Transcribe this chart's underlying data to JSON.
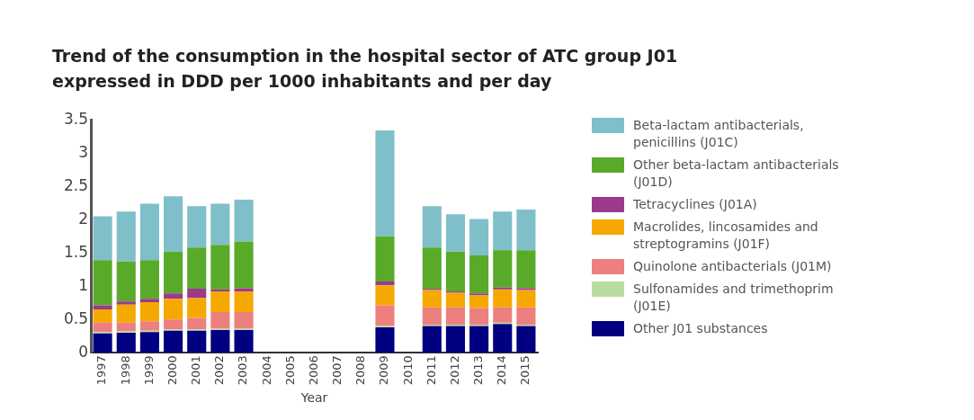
{
  "chart_data": {
    "type": "bar",
    "title": "Trend of the consumption in the hospital sector of ATC group J01 expressed in DDD per 1000 inhabitants and per day",
    "xlabel": "Year",
    "categories": [
      "1997",
      "1998",
      "1999",
      "2000",
      "2001",
      "2002",
      "2003",
      "2004",
      "2005",
      "2006",
      "2007",
      "2008",
      "2009",
      "2010",
      "2011",
      "2012",
      "2013",
      "2014",
      "2015"
    ],
    "stacked": true,
    "ylim": [
      0,
      3.5
    ],
    "yticks": [
      0,
      0.5,
      1,
      1.5,
      2,
      2.5,
      3,
      3.5
    ],
    "grid": false,
    "legend": "right",
    "series": [
      {
        "name": "Other J01 substances",
        "color": "#000080",
        "values": [
          0.29,
          0.3,
          0.31,
          0.33,
          0.33,
          0.34,
          0.34,
          null,
          null,
          null,
          null,
          null,
          0.38,
          null,
          0.4,
          0.4,
          0.4,
          0.43,
          0.4
        ]
      },
      {
        "name": "Sulfonamides and trimethoprim (J01E)",
        "color": "#b8dca0",
        "values": [
          0.02,
          0.02,
          0.02,
          0.02,
          0.02,
          0.02,
          0.02,
          null,
          null,
          null,
          null,
          null,
          0.02,
          null,
          0.02,
          0.02,
          0.02,
          0.02,
          0.02
        ]
      },
      {
        "name": "Quinolone antibacterials (J01M)",
        "color": "#ee7f7f",
        "values": [
          0.14,
          0.13,
          0.14,
          0.15,
          0.17,
          0.25,
          0.25,
          null,
          null,
          null,
          null,
          null,
          0.31,
          null,
          0.26,
          0.26,
          0.25,
          0.23,
          0.26
        ]
      },
      {
        "name": "Macrolides, lincosamides and streptogramins (J01F)",
        "color": "#f5a800",
        "values": [
          0.2,
          0.27,
          0.29,
          0.31,
          0.3,
          0.31,
          0.31,
          null,
          null,
          null,
          null,
          null,
          0.3,
          null,
          0.26,
          0.22,
          0.19,
          0.27,
          0.26
        ]
      },
      {
        "name": "Tetracyclines (J01A)",
        "color": "#9b3a8c",
        "values": [
          0.06,
          0.05,
          0.05,
          0.08,
          0.14,
          0.03,
          0.05,
          null,
          null,
          null,
          null,
          null,
          0.06,
          null,
          0.02,
          0.02,
          0.03,
          0.03,
          0.03
        ]
      },
      {
        "name": "Other beta-lactam antibacterials (J01D)",
        "color": "#5aaa2a",
        "values": [
          0.68,
          0.6,
          0.58,
          0.63,
          0.62,
          0.67,
          0.7,
          null,
          null,
          null,
          null,
          null,
          0.68,
          null,
          0.62,
          0.6,
          0.57,
          0.56,
          0.57
        ]
      },
      {
        "name": "Beta-lactam antibacterials, penicillins (J01C)",
        "color": "#7fbfc9",
        "values": [
          0.66,
          0.75,
          0.85,
          0.83,
          0.62,
          0.62,
          0.63,
          null,
          null,
          null,
          null,
          null,
          1.59,
          null,
          0.62,
          0.56,
          0.55,
          0.58,
          0.61
        ]
      }
    ]
  }
}
